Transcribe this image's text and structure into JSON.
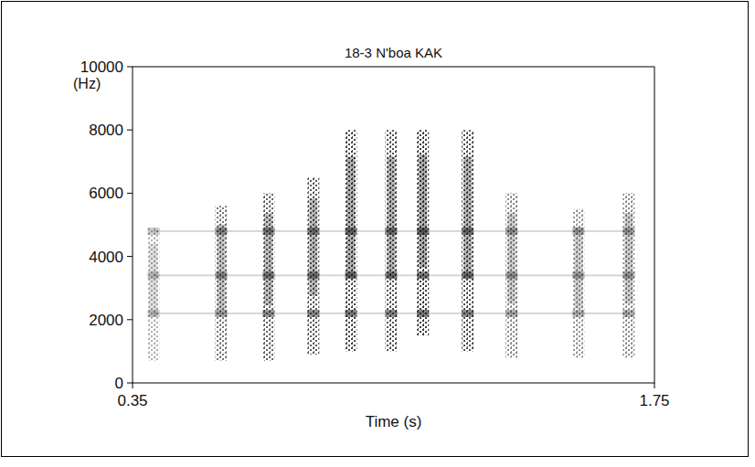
{
  "chart_data": {
    "type": "spectrogram",
    "title": "18-3 N'boa KAK",
    "y_label": "(Hz)",
    "x_label": "Time (s)",
    "x": [
      0.406,
      0.588,
      0.715,
      0.835,
      0.936,
      1.044,
      1.129,
      1.249,
      1.367,
      1.546,
      1.681
    ],
    "freq_low": [
      700,
      700,
      700,
      900,
      1000,
      1000,
      1500,
      1000,
      800,
      800,
      800
    ],
    "freq_high": [
      4900,
      5600,
      6000,
      6500,
      8000,
      8000,
      8000,
      8000,
      6000,
      5500,
      6000
    ],
    "intensity": [
      0.4,
      0.7,
      0.8,
      0.85,
      0.95,
      0.9,
      1.0,
      0.9,
      0.6,
      0.55,
      0.6
    ],
    "formants": [
      2200,
      3400,
      4800
    ],
    "color": "#1a1a1a",
    "xlim": [
      0.35,
      1.75
    ],
    "xticks": [
      0.35,
      1.75
    ],
    "ylim": [
      0,
      10000
    ],
    "yticks": [
      0,
      2000,
      4000,
      6000,
      8000,
      10000
    ],
    "grid": false
  }
}
